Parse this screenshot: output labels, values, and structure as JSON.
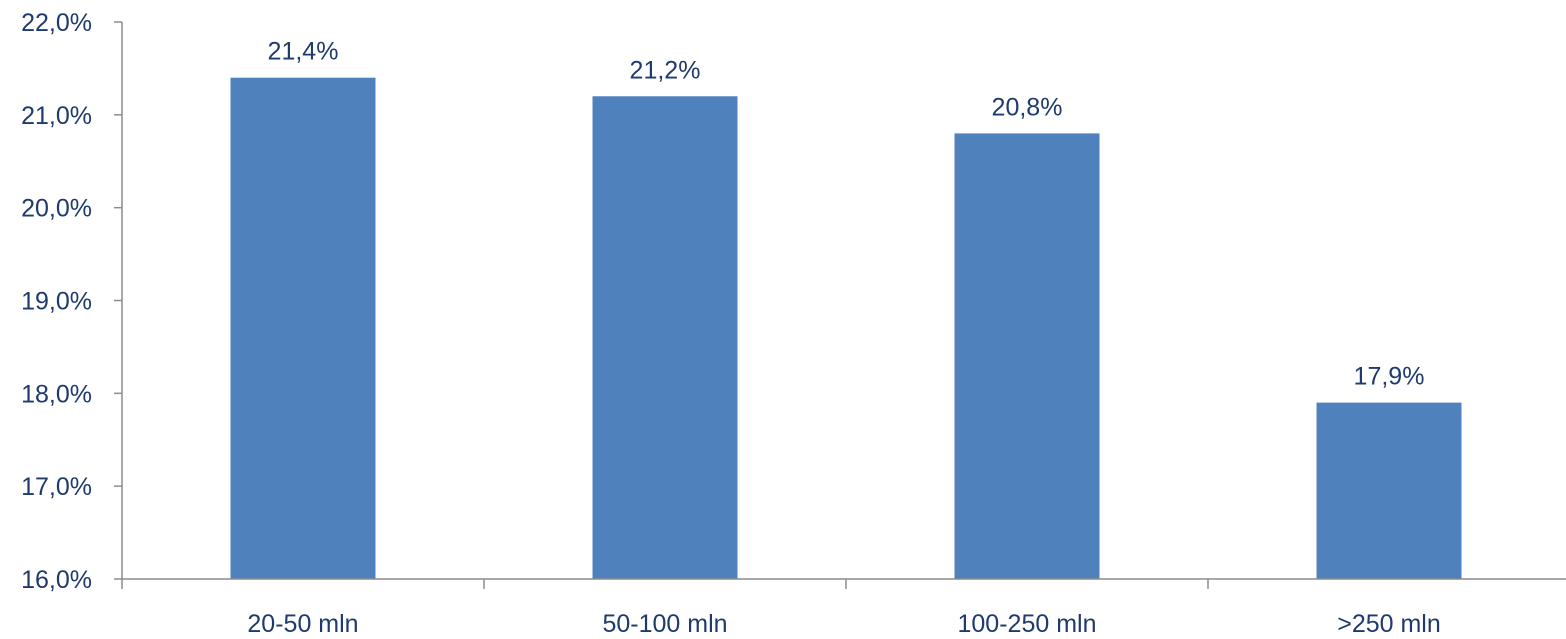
{
  "chart_data": {
    "type": "bar",
    "title": "",
    "xlabel": "",
    "ylabel": "",
    "categories": [
      "20-50 mln",
      "50-100 mln",
      "100-250 mln",
      ">250 mln"
    ],
    "values": [
      21.4,
      21.2,
      20.8,
      17.9
    ],
    "data_labels": [
      "21,4%",
      "21,2%",
      "20,8%",
      "17,9%"
    ],
    "ylim": [
      16,
      22
    ],
    "yticks": [
      16,
      17,
      18,
      19,
      20,
      21,
      22
    ],
    "ytick_labels": [
      "16,0%",
      "17,0%",
      "18,0%",
      "19,0%",
      "20,0%",
      "21,0%",
      "22,0%"
    ],
    "grid": false,
    "legend": "none",
    "bar_color": "#4f81bd",
    "text_color": "#1f3a6e"
  }
}
